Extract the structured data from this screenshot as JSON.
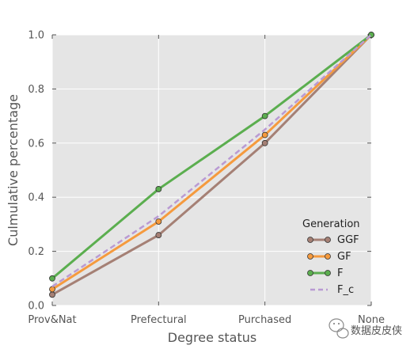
{
  "chart_data": {
    "type": "line",
    "categories": [
      "Prov&Nat",
      "Prefectural",
      "Purchased",
      "None"
    ],
    "xlabel": "Degree status",
    "ylabel": "Culmulative percentage",
    "ylim": [
      0.0,
      1.0
    ],
    "yticks": [
      "0.0",
      "0.2",
      "0.4",
      "0.6",
      "0.8",
      "1.0"
    ],
    "grid": true,
    "legend": {
      "title": "Generation",
      "placement": "lower-right"
    },
    "series": [
      {
        "name": "GGF",
        "values": [
          0.04,
          0.26,
          0.6,
          1.0
        ],
        "color": "#a58075",
        "style": "solid",
        "markers": true
      },
      {
        "name": "GF",
        "values": [
          0.06,
          0.31,
          0.63,
          1.0
        ],
        "color": "#f59a3e",
        "style": "solid",
        "markers": true
      },
      {
        "name": "F",
        "values": [
          0.1,
          0.43,
          0.7,
          1.0
        ],
        "color": "#5bae4f",
        "style": "solid",
        "markers": true
      },
      {
        "name": "F_c",
        "values": [
          0.07,
          0.33,
          0.65,
          1.0
        ],
        "color": "#b99ad3",
        "style": "dashed",
        "markers": false
      }
    ],
    "background": "#e5e5e5"
  },
  "watermark": {
    "text": "数据皮皮侠",
    "icon": "wechat-icon"
  }
}
